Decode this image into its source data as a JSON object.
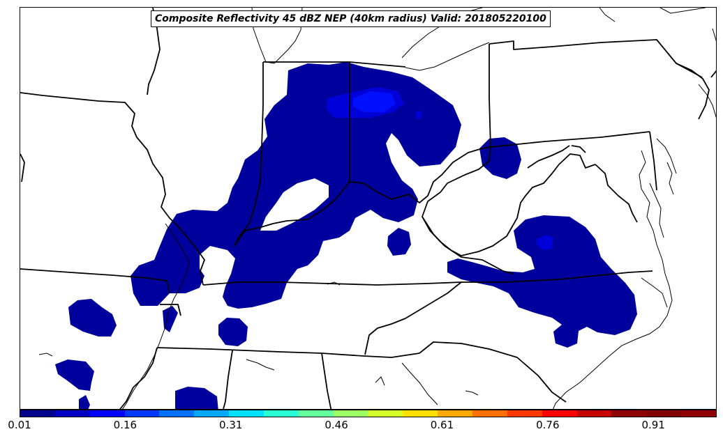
{
  "title": "Composite Reflectivity 45 dBZ NEP (40km radius) Valid: 201805220100",
  "colorbar": {
    "min": 0.01,
    "max": 1.0,
    "tick_labels": [
      "0.01",
      "0.16",
      "0.31",
      "0.46",
      "0.61",
      "0.76",
      "0.91"
    ],
    "tick_values": [
      0.01,
      0.16,
      0.31,
      0.46,
      0.61,
      0.76,
      0.91
    ],
    "colors": [
      "#00008f",
      "#0000c4",
      "#0000ff",
      "#0038ff",
      "#0070ff",
      "#00a8ff",
      "#00e0ff",
      "#2bffd4",
      "#63ff9c",
      "#9cff63",
      "#d4ff2b",
      "#ffe000",
      "#ffa800",
      "#ff7000",
      "#ff3800",
      "#ff0000",
      "#c40000",
      "#8f0000",
      "#7f0000",
      "#900000"
    ]
  },
  "probability_levels": {
    "low_color": "#00009c",
    "mid_color": "#0000e0",
    "high_color": "#0018ff"
  },
  "map": {
    "region": "Ohio Valley / Mid-Atlantic",
    "states": [
      "Illinois",
      "Indiana",
      "Ohio",
      "Kentucky",
      "Tennessee",
      "West Virginia",
      "Virginia",
      "North Carolina",
      "Missouri",
      "Arkansas",
      "Mississippi",
      "Alabama",
      "Georgia",
      "Pennsylvania",
      "Maryland",
      "Delaware",
      "New Jersey"
    ]
  }
}
